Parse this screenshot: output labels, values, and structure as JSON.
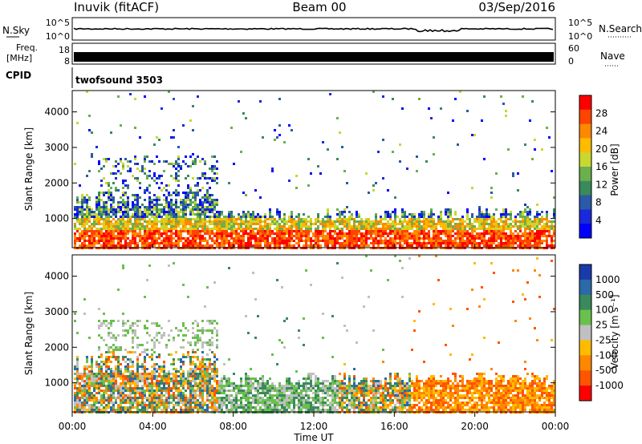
{
  "header": {
    "station": "Inuvik (fitACF)",
    "beam": "Beam 00",
    "date": "03/Sep/2016"
  },
  "sky_panel": {
    "left_label": "N.Sky",
    "right_label": "N.Search",
    "left_ticks": [
      "10^5",
      "10^0"
    ],
    "right_ticks": [
      "10^5",
      "10^0"
    ]
  },
  "freq_panel": {
    "left_label_1": "Freq.",
    "left_label_2": "[MHz]",
    "left_ticks": [
      "18",
      "8"
    ],
    "right_label": "Nave",
    "right_ticks": [
      "60",
      "0"
    ]
  },
  "cpid_panel": {
    "label": "CPID",
    "value": "twofsound 3503"
  },
  "chart_data": [
    {
      "type": "heatmap",
      "name": "power",
      "ylabel": "Slant Range [km]",
      "yticks": [
        "4000",
        "3000",
        "2000",
        "1000"
      ],
      "colorbar_label": "Power [dB]",
      "colorbar_ticks": [
        "28",
        "24",
        "20",
        "16",
        "12",
        "8",
        "4"
      ],
      "colorbar_colors": [
        "#ff0000",
        "#ff4400",
        "#ff8800",
        "#ffbb00",
        "#c8d830",
        "#6ab04c",
        "#3a8a5c",
        "#2a5aa8",
        "#1a2ad8",
        "#0000ff"
      ]
    },
    {
      "type": "heatmap",
      "name": "velocity",
      "ylabel": "Slant Range [km]",
      "yticks": [
        "4000",
        "3000",
        "2000",
        "1000"
      ],
      "colorbar_label": "Velocity [m s⁻¹]",
      "colorbar_ticks": [
        "1000",
        "500",
        "100",
        "25",
        "-25",
        "-100",
        "-500",
        "-1000"
      ],
      "colorbar_colors": [
        "#1a3aaa",
        "#2a6aa8",
        "#3a8a5c",
        "#6ac04c",
        "#c0c0c0",
        "#ffbb00",
        "#ff8800",
        "#ff5500",
        "#ff0000"
      ]
    }
  ],
  "x_axis": {
    "ticks": [
      "00:00",
      "04:00",
      "08:00",
      "12:00",
      "16:00",
      "20:00",
      "00:00"
    ],
    "label": "Time UT"
  }
}
